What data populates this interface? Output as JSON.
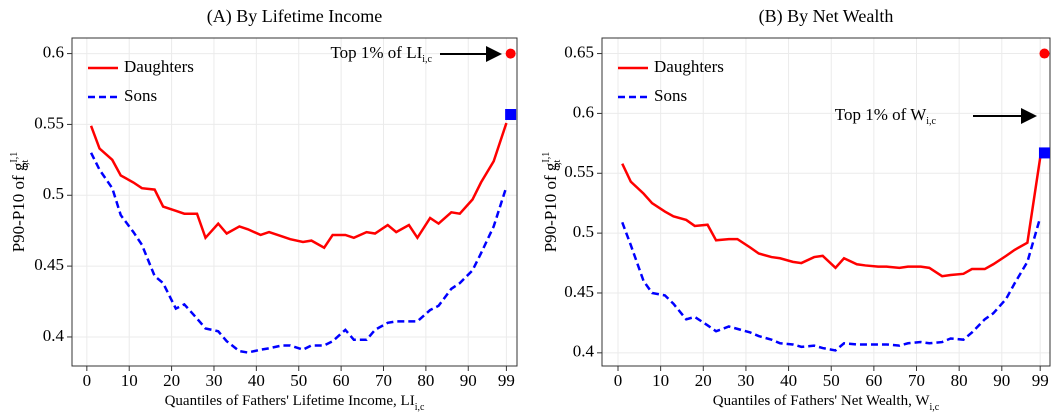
{
  "chart_data": [
    {
      "type": "line",
      "title": "(A) By Lifetime Income",
      "xlabel": {
        "text": "Quantiles of Fathers' Lifetime Income, LI",
        "sub": "i,c"
      },
      "ylabel": {
        "text": "P90-P10 of g",
        "sup": "I,1",
        "sub": "i,t"
      },
      "annotation": {
        "text": "Top 1% of LI",
        "sub": "i,c"
      },
      "x": [
        1,
        3,
        6,
        8,
        11,
        13,
        16,
        18,
        21,
        23,
        26,
        28,
        31,
        33,
        36,
        38,
        41,
        43,
        46,
        48,
        51,
        53,
        56,
        58,
        61,
        63,
        66,
        68,
        71,
        73,
        76,
        78,
        81,
        83,
        86,
        88,
        91,
        93,
        96,
        99
      ],
      "series": [
        {
          "name": "Daughters",
          "color": "#ff0000",
          "dash": false,
          "values": [
            0.549,
            0.533,
            0.525,
            0.514,
            0.509,
            0.505,
            0.504,
            0.492,
            0.489,
            0.487,
            0.487,
            0.47,
            0.48,
            0.473,
            0.478,
            0.476,
            0.472,
            0.474,
            0.471,
            0.469,
            0.467,
            0.468,
            0.463,
            0.472,
            0.472,
            0.47,
            0.474,
            0.473,
            0.479,
            0.474,
            0.479,
            0.47,
            0.484,
            0.48,
            0.488,
            0.487,
            0.497,
            0.509,
            0.524,
            0.551
          ]
        },
        {
          "name": "Sons",
          "color": "#0000ff",
          "dash": true,
          "values": [
            0.53,
            0.518,
            0.505,
            0.486,
            0.474,
            0.465,
            0.443,
            0.438,
            0.42,
            0.423,
            0.413,
            0.406,
            0.404,
            0.397,
            0.39,
            0.389,
            0.391,
            0.392,
            0.394,
            0.394,
            0.391,
            0.394,
            0.394,
            0.397,
            0.405,
            0.398,
            0.398,
            0.405,
            0.41,
            0.411,
            0.411,
            0.411,
            0.419,
            0.422,
            0.434,
            0.438,
            0.447,
            0.459,
            0.478,
            0.506
          ]
        }
      ],
      "top_markers": [
        {
          "x": 100,
          "y": 0.6,
          "color": "#ff0000",
          "shape": "circle"
        },
        {
          "x": 100,
          "y": 0.557,
          "color": "#0000ff",
          "shape": "square"
        }
      ],
      "xlim": [
        -3.5,
        101.5
      ],
      "ylim": [
        0.3795,
        0.611
      ],
      "xticks": [
        0,
        10,
        20,
        30,
        40,
        50,
        60,
        70,
        80,
        90,
        99
      ],
      "yticks": [
        0.4,
        0.45,
        0.5,
        0.55,
        0.6
      ],
      "grid": true
    },
    {
      "type": "line",
      "title": "(B) By Net Wealth",
      "xlabel": {
        "text": "Quantiles of Fathers' Net Wealth, W",
        "sub": "i,c"
      },
      "ylabel": {
        "text": "P90-P10 of g",
        "sup": "I,1",
        "sub": "i,t"
      },
      "annotation": {
        "text": "Top 1% of W",
        "sub": "i,c"
      },
      "x": [
        1,
        3,
        6,
        8,
        11,
        13,
        16,
        18,
        21,
        23,
        26,
        28,
        31,
        33,
        36,
        38,
        41,
        43,
        46,
        48,
        51,
        53,
        56,
        58,
        61,
        63,
        66,
        68,
        71,
        73,
        76,
        78,
        81,
        83,
        86,
        88,
        91,
        93,
        96,
        99
      ],
      "series": [
        {
          "name": "Daughters",
          "color": "#ff0000",
          "dash": false,
          "values": [
            0.558,
            0.543,
            0.533,
            0.525,
            0.518,
            0.514,
            0.511,
            0.506,
            0.507,
            0.494,
            0.495,
            0.495,
            0.488,
            0.483,
            0.48,
            0.479,
            0.476,
            0.475,
            0.48,
            0.481,
            0.471,
            0.479,
            0.474,
            0.473,
            0.472,
            0.472,
            0.471,
            0.472,
            0.472,
            0.471,
            0.464,
            0.465,
            0.466,
            0.47,
            0.47,
            0.474,
            0.481,
            0.486,
            0.492,
            0.563
          ]
        },
        {
          "name": "Sons",
          "color": "#0000ff",
          "dash": true,
          "values": [
            0.509,
            0.49,
            0.46,
            0.45,
            0.448,
            0.441,
            0.428,
            0.43,
            0.423,
            0.418,
            0.422,
            0.42,
            0.417,
            0.414,
            0.411,
            0.408,
            0.407,
            0.405,
            0.406,
            0.404,
            0.402,
            0.408,
            0.407,
            0.407,
            0.407,
            0.407,
            0.406,
            0.408,
            0.409,
            0.408,
            0.409,
            0.412,
            0.411,
            0.417,
            0.428,
            0.433,
            0.445,
            0.458,
            0.476,
            0.513
          ]
        }
      ],
      "top_markers": [
        {
          "x": 100,
          "y": 0.65,
          "color": "#ff0000",
          "shape": "circle"
        },
        {
          "x": 100,
          "y": 0.567,
          "color": "#0000ff",
          "shape": "square"
        }
      ],
      "xlim": [
        -3.75,
        101.3
      ],
      "ylim": [
        0.389,
        0.663
      ],
      "xticks": [
        0,
        10,
        20,
        30,
        40,
        50,
        60,
        70,
        80,
        90,
        99
      ],
      "yticks": [
        0.4,
        0.45,
        0.5,
        0.55,
        0.6,
        0.65
      ],
      "grid": true
    }
  ]
}
